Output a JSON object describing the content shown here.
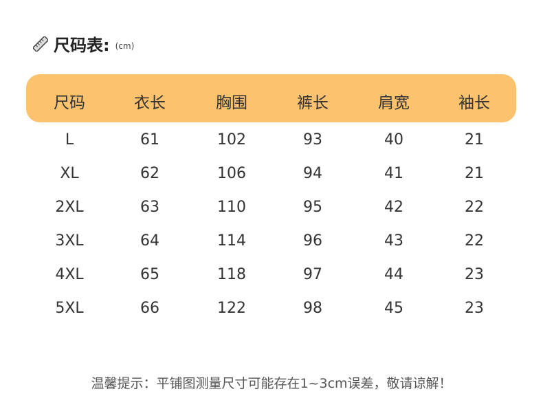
{
  "title": {
    "text": "尺码表:",
    "unit": "(cm)",
    "icon": "ruler-icon"
  },
  "colors": {
    "header_bg": "#FDC26E",
    "text": "#333333"
  },
  "table": {
    "headers": [
      "尺码",
      "衣长",
      "胸围",
      "裤长",
      "肩宽",
      "袖长"
    ],
    "rows": [
      [
        "L",
        "61",
        "102",
        "93",
        "40",
        "21"
      ],
      [
        "XL",
        "62",
        "106",
        "94",
        "41",
        "21"
      ],
      [
        "2XL",
        "63",
        "110",
        "95",
        "42",
        "22"
      ],
      [
        "3XL",
        "64",
        "114",
        "96",
        "43",
        "22"
      ],
      [
        "4XL",
        "65",
        "118",
        "97",
        "44",
        "23"
      ],
      [
        "5XL",
        "66",
        "122",
        "98",
        "45",
        "23"
      ]
    ]
  },
  "note": "温馨提示：平铺图测量尺寸可能存在1~3cm误差，敬请谅解！"
}
